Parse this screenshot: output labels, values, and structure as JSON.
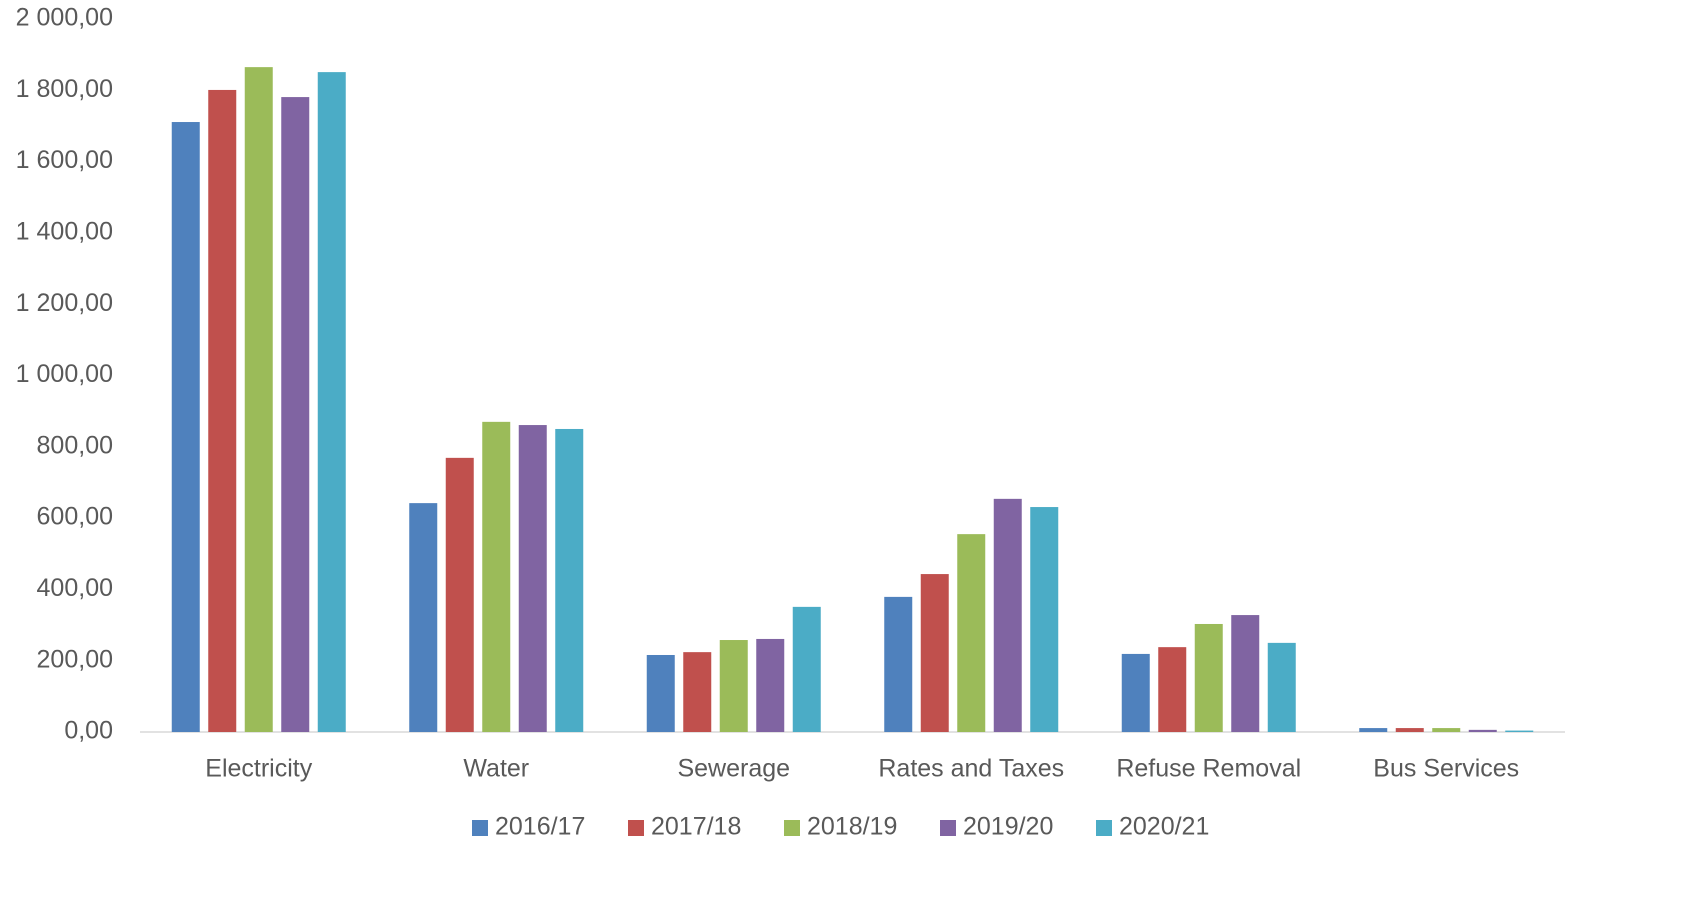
{
  "chart_data": {
    "type": "bar",
    "categories": [
      "Electricity",
      "Water",
      "Sewerage",
      "Rates and Taxes",
      "Refuse Removal",
      "Bus Services"
    ],
    "series": [
      {
        "name": "2016/17",
        "color": "#4f81bd",
        "values": [
          1711,
          642,
          216,
          379,
          219,
          11
        ]
      },
      {
        "name": "2017/18",
        "color": "#c0504d",
        "values": [
          1801,
          769,
          224,
          443,
          238,
          11
        ]
      },
      {
        "name": "2018/19",
        "color": "#9bbb59",
        "values": [
          1865,
          870,
          258,
          555,
          303,
          11
        ]
      },
      {
        "name": "2019/20",
        "color": "#8064a2",
        "values": [
          1781,
          861,
          261,
          654,
          328,
          6
        ]
      },
      {
        "name": "2020/21",
        "color": "#4bacc6",
        "values": [
          1851,
          850,
          351,
          631,
          250,
          4
        ]
      }
    ],
    "ylim": [
      0,
      2000
    ],
    "yticks": [
      {
        "value": 0,
        "label": "0,00"
      },
      {
        "value": 200,
        "label": "200,00"
      },
      {
        "value": 400,
        "label": "400,00"
      },
      {
        "value": 600,
        "label": "600,00"
      },
      {
        "value": 800,
        "label": "800,00"
      },
      {
        "value": 1000,
        "label": "1 000,00"
      },
      {
        "value": 1200,
        "label": "1 200,00"
      },
      {
        "value": 1400,
        "label": "1 400,00"
      },
      {
        "value": 1600,
        "label": "1 600,00"
      },
      {
        "value": 1800,
        "label": "1 800,00"
      },
      {
        "value": 2000,
        "label": "2 000,00"
      }
    ],
    "grid": false,
    "legend": "bottom"
  }
}
